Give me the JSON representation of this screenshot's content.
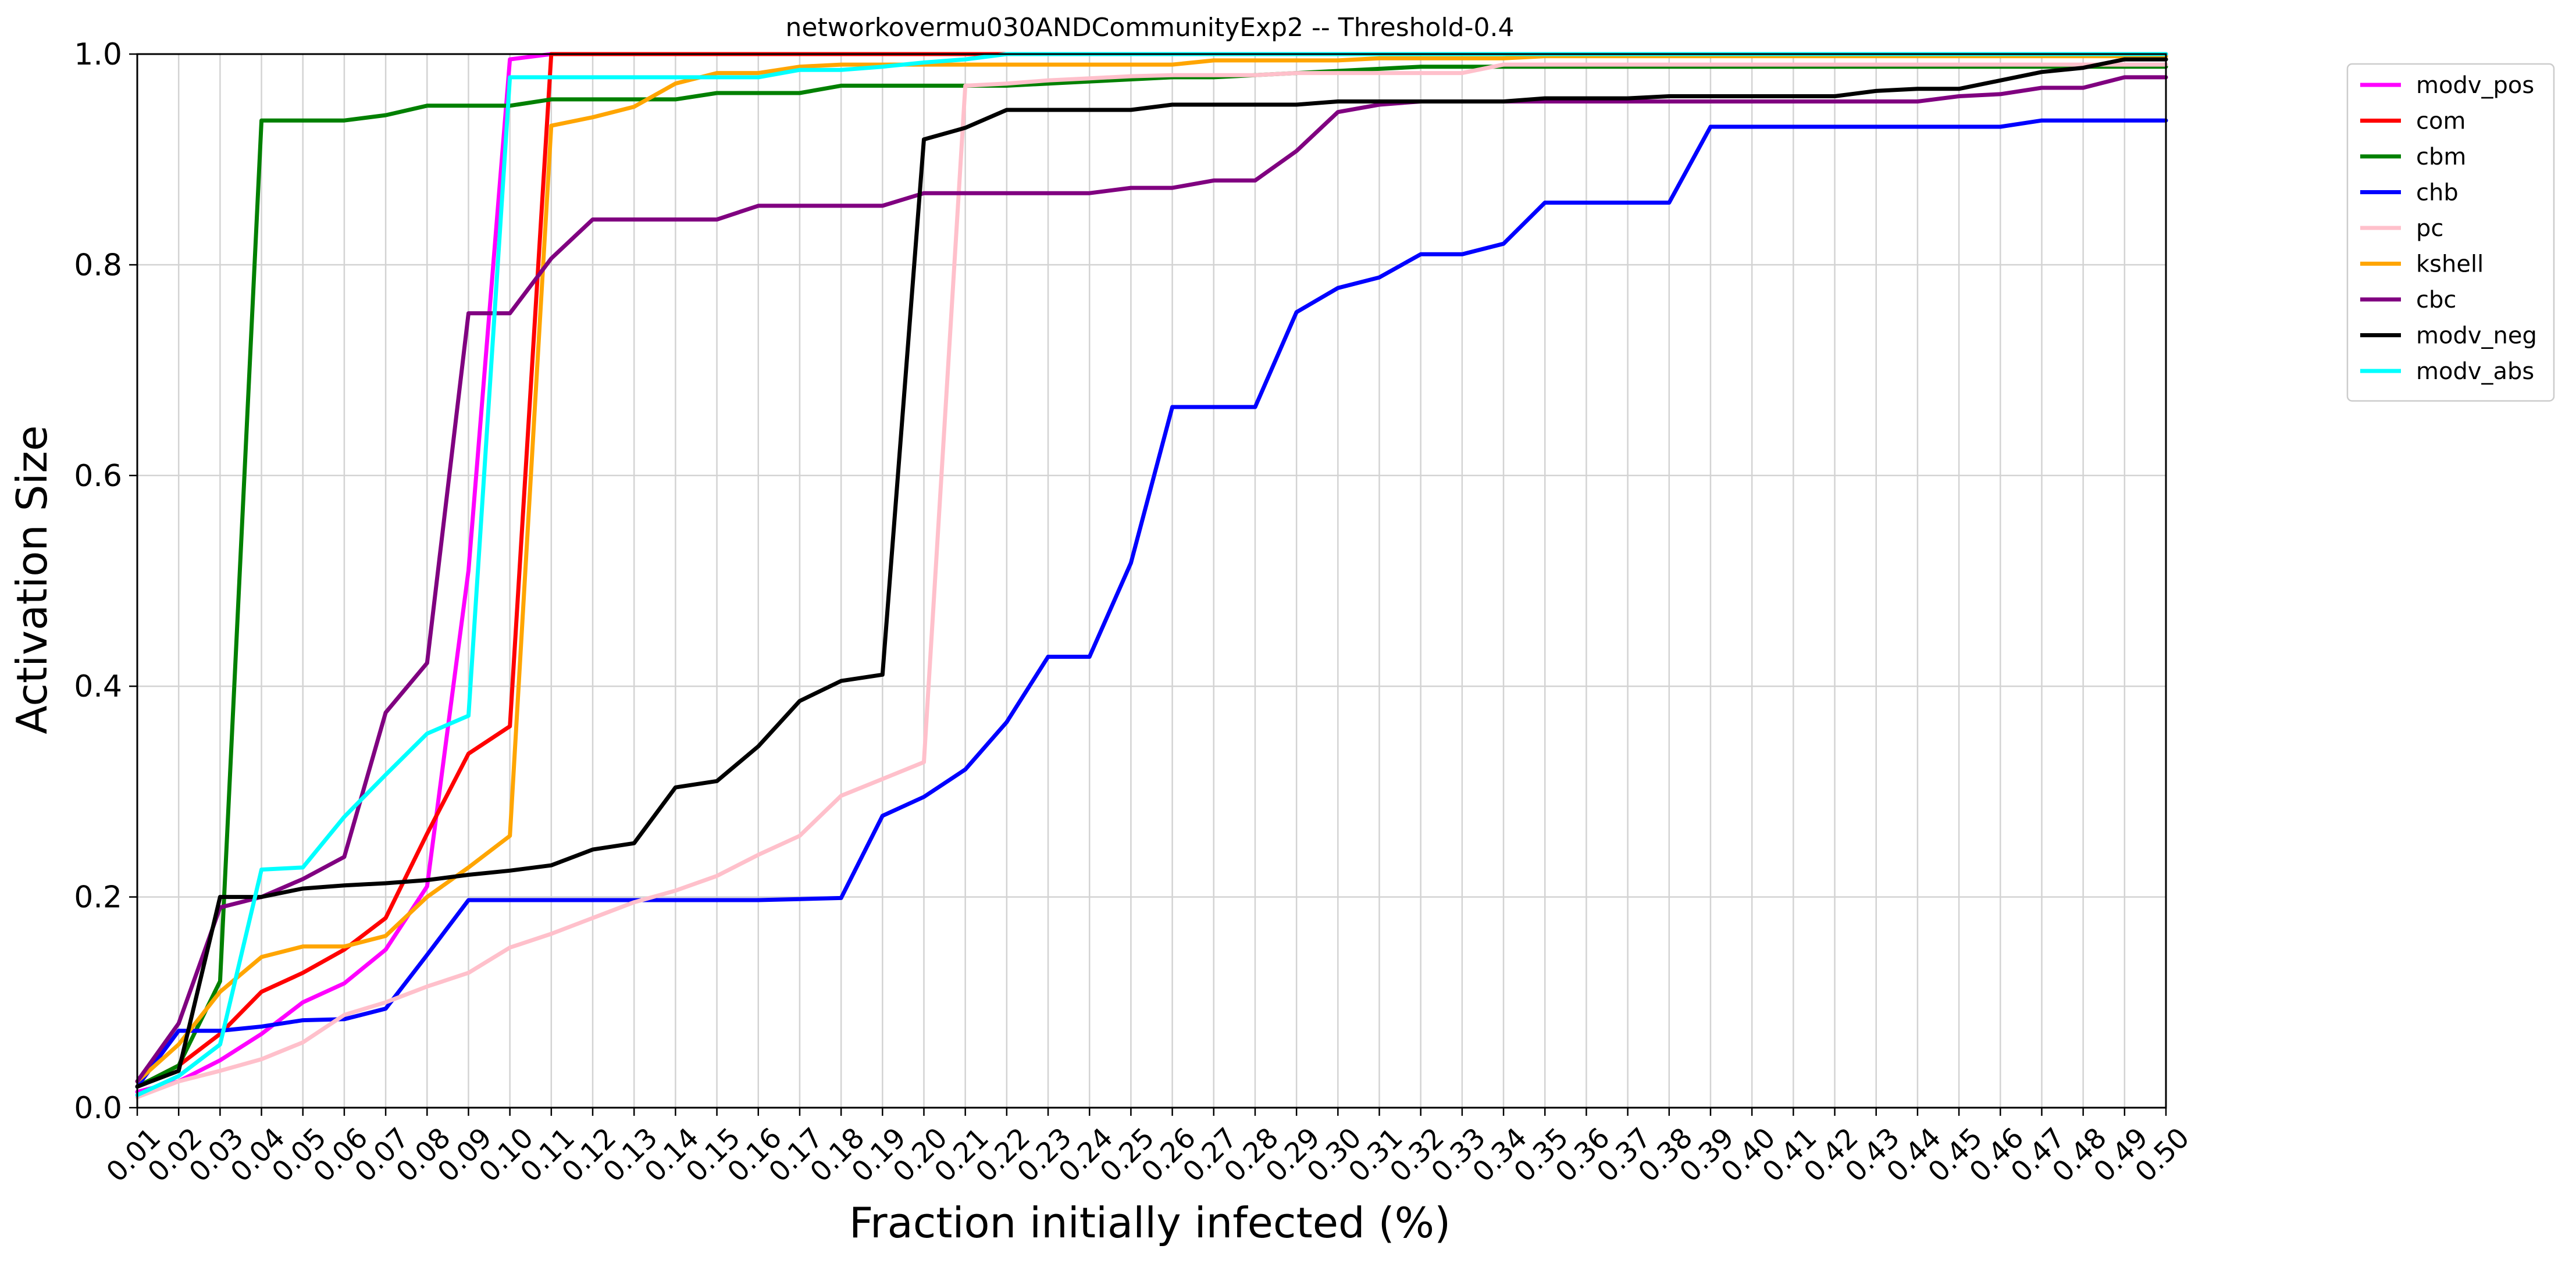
{
  "chart_data": {
    "type": "line",
    "title": "networkovermu030ANDCommunityExp2 -- Threshold-0.4",
    "xlabel": "Fraction initially infected (%)",
    "ylabel": "Activation Size",
    "xlim": [
      0.01,
      0.5
    ],
    "ylim": [
      0.0,
      1.0
    ],
    "grid": true,
    "legend_position": "outside-right-top",
    "x_ticks": [
      "0.01",
      "0.02",
      "0.03",
      "0.04",
      "0.05",
      "0.06",
      "0.07",
      "0.08",
      "0.09",
      "0.10",
      "0.11",
      "0.12",
      "0.13",
      "0.14",
      "0.15",
      "0.16",
      "0.17",
      "0.18",
      "0.19",
      "0.20",
      "0.21",
      "0.22",
      "0.23",
      "0.24",
      "0.25",
      "0.26",
      "0.27",
      "0.28",
      "0.29",
      "0.30",
      "0.31",
      "0.32",
      "0.33",
      "0.34",
      "0.35",
      "0.36",
      "0.37",
      "0.38",
      "0.39",
      "0.40",
      "0.41",
      "0.42",
      "0.43",
      "0.44",
      "0.45",
      "0.46",
      "0.47",
      "0.48",
      "0.49",
      "0.50"
    ],
    "y_ticks": [
      "0.0",
      "0.2",
      "0.4",
      "0.6",
      "0.8",
      "1.0"
    ],
    "x": [
      0.01,
      0.02,
      0.03,
      0.04,
      0.05,
      0.06,
      0.07,
      0.08,
      0.09,
      0.1,
      0.11,
      0.12,
      0.13,
      0.14,
      0.15,
      0.16,
      0.17,
      0.18,
      0.19,
      0.2,
      0.21,
      0.22,
      0.23,
      0.24,
      0.25,
      0.26,
      0.27,
      0.28,
      0.29,
      0.3,
      0.31,
      0.32,
      0.33,
      0.34,
      0.35,
      0.36,
      0.37,
      0.38,
      0.39,
      0.4,
      0.41,
      0.42,
      0.43,
      0.44,
      0.45,
      0.46,
      0.47,
      0.48,
      0.49,
      0.5
    ],
    "series": [
      {
        "name": "modv_pos",
        "color": "#ff00ff",
        "values": [
          0.015,
          0.025,
          0.045,
          0.07,
          0.1,
          0.118,
          0.15,
          0.21,
          0.51,
          0.995,
          1.0,
          1.0,
          1.0,
          1.0,
          1.0,
          1.0,
          1.0,
          1.0,
          1.0,
          1.0,
          1.0,
          1.0,
          1.0,
          1.0,
          1.0,
          1.0,
          1.0,
          1.0,
          1.0,
          1.0,
          1.0,
          1.0,
          1.0,
          1.0,
          1.0,
          1.0,
          1.0,
          1.0,
          1.0,
          1.0,
          1.0,
          1.0,
          1.0,
          1.0,
          1.0,
          1.0,
          1.0,
          1.0,
          1.0,
          1.0
        ]
      },
      {
        "name": "com",
        "color": "#ff0000",
        "values": [
          0.02,
          0.04,
          0.07,
          0.11,
          0.128,
          0.15,
          0.18,
          0.26,
          0.336,
          0.362,
          1.0,
          1.0,
          1.0,
          1.0,
          1.0,
          1.0,
          1.0,
          1.0,
          1.0,
          1.0,
          1.0,
          1.0,
          1.0,
          1.0,
          1.0,
          1.0,
          1.0,
          1.0,
          1.0,
          1.0,
          1.0,
          1.0,
          1.0,
          1.0,
          1.0,
          1.0,
          1.0,
          1.0,
          1.0,
          1.0,
          1.0,
          1.0,
          1.0,
          1.0,
          1.0,
          1.0,
          1.0,
          1.0,
          1.0,
          1.0
        ]
      },
      {
        "name": "cbm",
        "color": "#008000",
        "values": [
          0.02,
          0.04,
          0.12,
          0.937,
          0.937,
          0.937,
          0.942,
          0.951,
          0.951,
          0.951,
          0.957,
          0.957,
          0.957,
          0.957,
          0.963,
          0.963,
          0.963,
          0.97,
          0.97,
          0.97,
          0.97,
          0.97,
          0.972,
          0.974,
          0.976,
          0.978,
          0.978,
          0.98,
          0.982,
          0.984,
          0.986,
          0.988,
          0.988,
          0.988,
          0.988,
          0.988,
          0.988,
          0.988,
          0.988,
          0.988,
          0.988,
          0.988,
          0.988,
          0.988,
          0.988,
          0.988,
          0.988,
          0.988,
          0.988,
          0.988
        ]
      },
      {
        "name": "chb",
        "color": "#0000ff",
        "values": [
          0.02,
          0.073,
          0.073,
          0.077,
          0.083,
          0.084,
          0.094,
          0.145,
          0.197,
          0.197,
          0.197,
          0.197,
          0.197,
          0.197,
          0.197,
          0.197,
          0.198,
          0.199,
          0.277,
          0.295,
          0.321,
          0.366,
          0.428,
          0.428,
          0.517,
          0.665,
          0.665,
          0.665,
          0.755,
          0.778,
          0.788,
          0.81,
          0.81,
          0.82,
          0.859,
          0.859,
          0.859,
          0.859,
          0.931,
          0.931,
          0.931,
          0.931,
          0.931,
          0.931,
          0.931,
          0.931,
          0.937,
          0.937,
          0.937,
          0.937
        ]
      },
      {
        "name": "pc",
        "color": "#ffc0cb",
        "values": [
          0.01,
          0.025,
          0.035,
          0.046,
          0.062,
          0.088,
          0.1,
          0.115,
          0.128,
          0.152,
          0.165,
          0.18,
          0.195,
          0.206,
          0.22,
          0.24,
          0.258,
          0.296,
          0.312,
          0.328,
          0.97,
          0.972,
          0.975,
          0.977,
          0.979,
          0.98,
          0.98,
          0.98,
          0.982,
          0.982,
          0.982,
          0.982,
          0.982,
          0.99,
          0.99,
          0.99,
          0.99,
          0.99,
          0.99,
          0.99,
          0.99,
          0.99,
          0.99,
          0.99,
          0.99,
          0.99,
          0.99,
          0.99,
          0.99,
          0.99
        ]
      },
      {
        "name": "kshell",
        "color": "#ffa500",
        "values": [
          0.025,
          0.06,
          0.11,
          0.143,
          0.153,
          0.153,
          0.163,
          0.2,
          0.228,
          0.258,
          0.932,
          0.94,
          0.95,
          0.972,
          0.982,
          0.982,
          0.988,
          0.99,
          0.99,
          0.99,
          0.99,
          0.99,
          0.99,
          0.99,
          0.99,
          0.99,
          0.994,
          0.994,
          0.994,
          0.994,
          0.996,
          0.996,
          0.996,
          0.996,
          0.998,
          0.998,
          0.998,
          0.998,
          0.998,
          0.998,
          0.998,
          0.998,
          0.998,
          0.998,
          0.998,
          0.998,
          0.998,
          0.998,
          0.998,
          0.998
        ]
      },
      {
        "name": "cbc",
        "color": "#800080",
        "values": [
          0.025,
          0.08,
          0.19,
          0.2,
          0.217,
          0.238,
          0.375,
          0.422,
          0.754,
          0.754,
          0.806,
          0.843,
          0.843,
          0.843,
          0.843,
          0.856,
          0.856,
          0.856,
          0.856,
          0.868,
          0.868,
          0.868,
          0.868,
          0.868,
          0.873,
          0.873,
          0.88,
          0.88,
          0.908,
          0.945,
          0.952,
          0.955,
          0.955,
          0.955,
          0.955,
          0.955,
          0.955,
          0.955,
          0.955,
          0.955,
          0.955,
          0.955,
          0.955,
          0.955,
          0.96,
          0.962,
          0.968,
          0.968,
          0.978,
          0.978
        ]
      },
      {
        "name": "modv_neg",
        "color": "#000000",
        "values": [
          0.02,
          0.035,
          0.2,
          0.2,
          0.208,
          0.211,
          0.213,
          0.216,
          0.221,
          0.225,
          0.23,
          0.245,
          0.251,
          0.304,
          0.31,
          0.343,
          0.386,
          0.405,
          0.411,
          0.919,
          0.93,
          0.947,
          0.947,
          0.947,
          0.947,
          0.952,
          0.952,
          0.952,
          0.952,
          0.955,
          0.955,
          0.955,
          0.955,
          0.955,
          0.958,
          0.958,
          0.958,
          0.96,
          0.96,
          0.96,
          0.96,
          0.96,
          0.965,
          0.967,
          0.967,
          0.975,
          0.983,
          0.987,
          0.995,
          0.995
        ]
      },
      {
        "name": "modv_abs",
        "color": "#00ffff",
        "values": [
          0.012,
          0.03,
          0.06,
          0.226,
          0.228,
          0.276,
          0.316,
          0.355,
          0.372,
          0.978,
          0.978,
          0.978,
          0.978,
          0.978,
          0.978,
          0.978,
          0.985,
          0.985,
          0.988,
          0.992,
          0.995,
          1.0,
          1.0,
          1.0,
          1.0,
          1.0,
          1.0,
          1.0,
          1.0,
          1.0,
          1.0,
          1.0,
          1.0,
          1.0,
          1.0,
          1.0,
          1.0,
          1.0,
          1.0,
          1.0,
          1.0,
          1.0,
          1.0,
          1.0,
          1.0,
          1.0,
          1.0,
          1.0,
          1.0,
          1.0
        ]
      }
    ]
  }
}
